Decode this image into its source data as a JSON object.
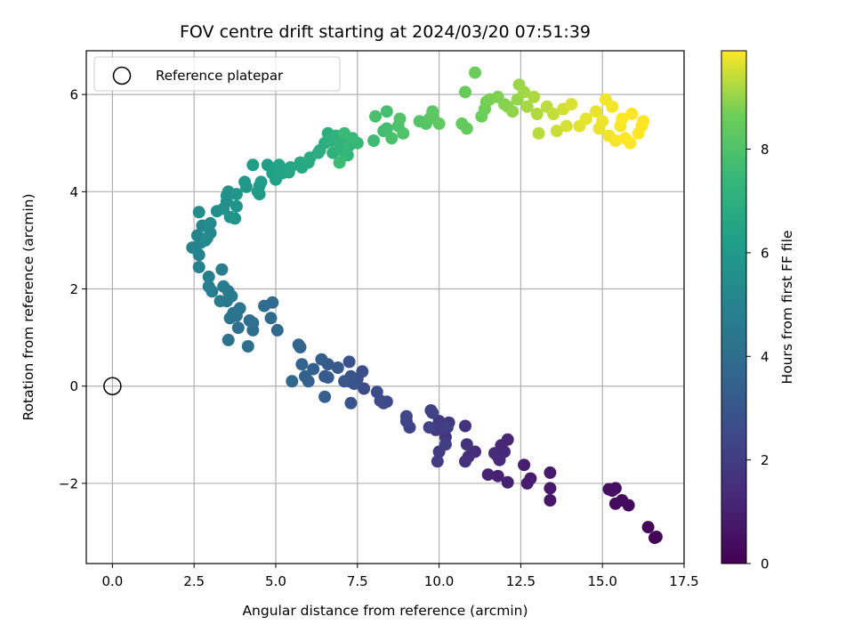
{
  "chart_data": {
    "type": "scatter",
    "title": "FOV centre drift starting at 2024/03/20 07:51:39",
    "xlabel": "Angular distance from reference (arcmin)",
    "ylabel": "Rotation from reference (arcmin)",
    "xlim": [
      -0.8,
      17.5
    ],
    "ylim": [
      -3.65,
      6.9
    ],
    "xticks": [
      "0.0",
      "2.5",
      "5.0",
      "7.5",
      "10.0",
      "12.5",
      "15.0",
      "17.5"
    ],
    "xtick_values": [
      0,
      2.5,
      5,
      7.5,
      10,
      12.5,
      15,
      17.5
    ],
    "yticks": [
      "−2",
      "0",
      "2",
      "4",
      "6"
    ],
    "ytick_values": [
      -2,
      0,
      2,
      4,
      6
    ],
    "grid": true,
    "legend": {
      "placement": "upper-left",
      "entries": [
        {
          "label": "Reference platepar",
          "marker": "open-circle"
        }
      ]
    },
    "reference_point": {
      "x": 0,
      "y": 0
    },
    "colorbar": {
      "label": "Hours from first FF file",
      "colormap": "viridis",
      "range": [
        0,
        9.9
      ],
      "ticks": [
        "0",
        "2",
        "4",
        "6",
        "8"
      ],
      "tick_values": [
        0,
        2,
        4,
        6,
        8
      ]
    },
    "points": [
      [
        16.6,
        -3.12,
        0.05
      ],
      [
        16.65,
        -3.1,
        0.1
      ],
      [
        16.4,
        -2.9,
        0.15
      ],
      [
        15.8,
        -2.45,
        0.25
      ],
      [
        15.6,
        -2.35,
        0.3
      ],
      [
        15.4,
        -2.42,
        0.35
      ],
      [
        15.4,
        -2.1,
        0.4
      ],
      [
        15.2,
        -2.12,
        0.45
      ],
      [
        15.3,
        -2.15,
        0.5
      ],
      [
        13.4,
        -2.35,
        0.7
      ],
      [
        13.4,
        -2.1,
        0.75
      ],
      [
        13.4,
        -1.78,
        0.8
      ],
      [
        12.8,
        -1.9,
        0.85
      ],
      [
        12.7,
        -2.0,
        0.9
      ],
      [
        12.6,
        -1.62,
        0.95
      ],
      [
        12.1,
        -1.98,
        1.0
      ],
      [
        11.8,
        -1.85,
        1.05
      ],
      [
        11.5,
        -1.82,
        1.1
      ],
      [
        12.1,
        -1.1,
        1.15
      ],
      [
        11.9,
        -1.22,
        1.2
      ],
      [
        12.0,
        -1.35,
        1.25
      ],
      [
        11.8,
        -1.45,
        1.3
      ],
      [
        11.85,
        -1.52,
        1.35
      ],
      [
        11.7,
        -1.38,
        1.4
      ],
      [
        11.1,
        -1.35,
        1.45
      ],
      [
        10.9,
        -1.45,
        1.5
      ],
      [
        10.8,
        -1.55,
        1.55
      ],
      [
        10.85,
        -1.2,
        1.6
      ],
      [
        10.8,
        -0.82,
        1.65
      ],
      [
        10.2,
        -1.05,
        1.7
      ],
      [
        10.1,
        -0.88,
        1.75
      ],
      [
        10.3,
        -0.75,
        1.8
      ],
      [
        10.0,
        -0.72,
        1.85
      ],
      [
        9.9,
        -0.9,
        1.9
      ],
      [
        10.0,
        -1.35,
        1.95
      ],
      [
        9.95,
        -1.55,
        2.0
      ],
      [
        10.2,
        -1.2,
        2.05
      ],
      [
        10.25,
        -0.85,
        2.1
      ],
      [
        9.75,
        -0.5,
        2.15
      ],
      [
        9.8,
        -0.55,
        2.2
      ],
      [
        9.7,
        -0.85,
        2.25
      ],
      [
        9.1,
        -0.85,
        2.3
      ],
      [
        9.0,
        -0.72,
        2.35
      ],
      [
        9.0,
        -0.62,
        2.4
      ],
      [
        8.4,
        -0.32,
        2.45
      ],
      [
        8.3,
        -0.35,
        2.5
      ],
      [
        8.2,
        -0.3,
        2.55
      ],
      [
        8.1,
        -0.12,
        2.6
      ],
      [
        7.7,
        -0.05,
        2.65
      ],
      [
        7.5,
        0.15,
        2.7
      ],
      [
        7.65,
        0.3,
        2.75
      ],
      [
        7.25,
        0.1,
        2.8
      ],
      [
        7.25,
        0.5,
        2.85
      ],
      [
        7.3,
        0.2,
        2.9
      ],
      [
        7.4,
        0.05,
        2.95
      ],
      [
        7.3,
        -0.35,
        3.0
      ],
      [
        7.1,
        0.1,
        3.05
      ],
      [
        6.9,
        0.38,
        3.1
      ],
      [
        6.6,
        0.18,
        3.15
      ],
      [
        6.5,
        0.2,
        3.2
      ],
      [
        6.6,
        0.45,
        3.25
      ],
      [
        6.4,
        0.55,
        3.3
      ],
      [
        6.5,
        -0.22,
        3.35
      ],
      [
        6.15,
        0.35,
        3.4
      ],
      [
        6.0,
        0.1,
        3.45
      ],
      [
        5.9,
        0.2,
        3.5
      ],
      [
        5.8,
        0.45,
        3.55
      ],
      [
        5.75,
        0.8,
        3.6
      ],
      [
        5.7,
        0.85,
        3.65
      ],
      [
        5.5,
        0.1,
        3.7
      ],
      [
        5.05,
        1.15,
        3.75
      ],
      [
        4.9,
        1.72,
        3.8
      ],
      [
        4.85,
        1.4,
        3.85
      ],
      [
        4.65,
        1.65,
        3.9
      ],
      [
        4.3,
        1.15,
        3.95
      ],
      [
        4.2,
        1.35,
        4.0
      ],
      [
        4.15,
        0.82,
        4.05
      ],
      [
        4.3,
        1.3,
        4.1
      ],
      [
        3.85,
        1.2,
        4.15
      ],
      [
        3.8,
        1.45,
        4.2
      ],
      [
        3.55,
        0.95,
        4.25
      ],
      [
        3.6,
        1.4,
        4.3
      ],
      [
        3.9,
        1.6,
        4.35
      ],
      [
        3.7,
        1.5,
        4.4
      ],
      [
        3.5,
        1.75,
        4.45
      ],
      [
        3.55,
        1.95,
        4.5
      ],
      [
        3.65,
        1.85,
        4.55
      ],
      [
        3.3,
        1.75,
        4.6
      ],
      [
        3.4,
        2.05,
        4.65
      ],
      [
        3.35,
        2.4,
        4.7
      ],
      [
        3.05,
        1.95,
        4.75
      ],
      [
        2.95,
        2.25,
        4.8
      ],
      [
        2.95,
        2.05,
        4.85
      ],
      [
        2.65,
        2.45,
        4.9
      ],
      [
        2.65,
        2.7,
        4.95
      ],
      [
        2.45,
        2.85,
        5.0
      ],
      [
        2.7,
        2.95,
        5.05
      ],
      [
        2.6,
        3.1,
        5.1
      ],
      [
        2.75,
        3.3,
        5.15
      ],
      [
        2.9,
        3.05,
        5.2
      ],
      [
        3.0,
        3.15,
        5.25
      ],
      [
        2.85,
        3.0,
        5.3
      ],
      [
        3.0,
        3.35,
        5.35
      ],
      [
        2.65,
        3.58,
        5.4
      ],
      [
        3.2,
        3.6,
        5.45
      ],
      [
        3.4,
        3.65,
        5.5
      ],
      [
        3.5,
        3.8,
        5.55
      ],
      [
        3.5,
        3.92,
        5.6
      ],
      [
        3.55,
        4.0,
        5.65
      ],
      [
        3.6,
        3.48,
        5.7
      ],
      [
        3.75,
        3.45,
        5.75
      ],
      [
        3.8,
        3.7,
        5.8
      ],
      [
        3.8,
        3.95,
        5.85
      ],
      [
        4.1,
        4.1,
        5.9
      ],
      [
        4.05,
        4.2,
        5.95
      ],
      [
        4.45,
        4.0,
        6.0
      ],
      [
        4.5,
        3.95,
        6.05
      ],
      [
        4.5,
        4.12,
        6.1
      ],
      [
        4.55,
        4.2,
        6.15
      ],
      [
        4.3,
        4.55,
        6.2
      ],
      [
        4.75,
        4.55,
        6.25
      ],
      [
        4.9,
        4.38,
        6.3
      ],
      [
        5.0,
        4.25,
        6.35
      ],
      [
        5.0,
        4.45,
        6.4
      ],
      [
        5.1,
        4.55,
        6.45
      ],
      [
        5.2,
        4.38,
        6.5
      ],
      [
        5.4,
        4.4,
        6.55
      ],
      [
        5.45,
        4.5,
        6.6
      ],
      [
        5.75,
        4.6,
        6.65
      ],
      [
        5.8,
        4.5,
        6.7
      ],
      [
        6.0,
        4.6,
        6.75
      ],
      [
        6.05,
        4.7,
        6.8
      ],
      [
        6.3,
        4.8,
        6.85
      ],
      [
        6.35,
        4.85,
        6.9
      ],
      [
        6.5,
        5.0,
        6.95
      ],
      [
        6.6,
        5.2,
        7.0
      ],
      [
        6.7,
        5.05,
        7.05
      ],
      [
        6.75,
        4.8,
        7.1
      ],
      [
        6.85,
        5.15,
        7.15
      ],
      [
        6.95,
        5.0,
        7.2
      ],
      [
        7.05,
        5.1,
        7.25
      ],
      [
        7.0,
        4.85,
        7.3
      ],
      [
        7.2,
        4.75,
        7.35
      ],
      [
        7.25,
        4.95,
        7.4
      ],
      [
        7.35,
        5.1,
        7.45
      ],
      [
        7.5,
        5.0,
        7.5
      ],
      [
        7.1,
        5.2,
        7.55
      ],
      [
        6.95,
        4.6,
        7.6
      ],
      [
        8.0,
        5.05,
        7.65
      ],
      [
        8.3,
        5.25,
        7.7
      ],
      [
        8.4,
        5.3,
        7.75
      ],
      [
        8.4,
        5.65,
        7.8
      ],
      [
        8.05,
        5.55,
        7.85
      ],
      [
        8.55,
        5.1,
        7.9
      ],
      [
        8.75,
        5.35,
        7.95
      ],
      [
        8.9,
        5.2,
        8.0
      ],
      [
        8.8,
        5.5,
        8.05
      ],
      [
        9.4,
        5.45,
        8.1
      ],
      [
        9.6,
        5.4,
        8.15
      ],
      [
        9.7,
        5.5,
        8.2
      ],
      [
        9.8,
        5.55,
        8.25
      ],
      [
        9.8,
        5.65,
        8.3
      ],
      [
        10.0,
        5.4,
        8.35
      ],
      [
        10.7,
        5.4,
        8.4
      ],
      [
        10.85,
        5.3,
        8.45
      ],
      [
        10.8,
        6.05,
        8.5
      ],
      [
        11.1,
        6.45,
        8.55
      ],
      [
        11.3,
        5.55,
        8.6
      ],
      [
        11.4,
        5.7,
        8.65
      ],
      [
        11.45,
        5.85,
        8.7
      ],
      [
        11.55,
        5.9,
        8.75
      ],
      [
        11.8,
        5.95,
        8.8
      ],
      [
        12.0,
        5.8,
        8.85
      ],
      [
        12.1,
        5.75,
        8.9
      ],
      [
        12.25,
        5.65,
        8.95
      ],
      [
        12.4,
        5.9,
        9.0
      ],
      [
        12.45,
        6.2,
        9.05
      ],
      [
        12.6,
        6.05,
        9.1
      ],
      [
        12.7,
        5.75,
        9.15
      ],
      [
        12.9,
        5.95,
        9.2
      ],
      [
        13.0,
        5.6,
        9.25
      ],
      [
        13.05,
        5.2,
        9.3
      ],
      [
        13.3,
        5.75,
        9.35
      ],
      [
        13.5,
        5.6,
        9.4
      ],
      [
        13.6,
        5.25,
        9.45
      ],
      [
        13.8,
        5.7,
        9.5
      ],
      [
        13.9,
        5.35,
        9.55
      ],
      [
        14.05,
        5.8,
        9.6
      ],
      [
        14.3,
        5.35,
        9.65
      ],
      [
        14.5,
        5.5,
        9.7
      ],
      [
        14.8,
        5.65,
        9.72
      ],
      [
        14.9,
        5.3,
        9.74
      ],
      [
        15.0,
        5.45,
        9.76
      ],
      [
        15.1,
        5.9,
        9.78
      ],
      [
        15.2,
        5.15,
        9.8
      ],
      [
        15.3,
        5.75,
        9.82
      ],
      [
        15.4,
        5.05,
        9.84
      ],
      [
        15.55,
        5.35,
        9.86
      ],
      [
        15.6,
        5.5,
        9.88
      ],
      [
        15.7,
        5.1,
        9.9
      ],
      [
        15.85,
        5.0,
        9.92
      ],
      [
        15.9,
        5.6,
        9.94
      ],
      [
        16.1,
        5.2,
        9.96
      ],
      [
        16.2,
        5.35,
        9.98
      ],
      [
        16.25,
        5.45,
        9.99
      ]
    ]
  },
  "colors": {
    "grid": "#b0b0b0",
    "axes": "#000000",
    "legend_border": "#cccccc"
  }
}
